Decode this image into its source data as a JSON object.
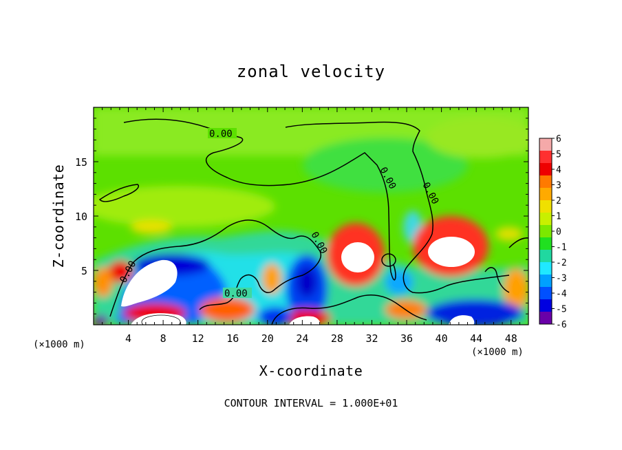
{
  "chart_data": {
    "type": "heatmap",
    "title": "zonal velocity",
    "xlabel": "X-coordinate",
    "ylabel": "Z-coordinate",
    "x_unit": "(×1000 m)",
    "y_unit": "(×1000 m)",
    "xlim": [
      0,
      50
    ],
    "ylim": [
      0,
      20
    ],
    "x_ticks": [
      4,
      8,
      12,
      16,
      20,
      24,
      28,
      32,
      36,
      40,
      44,
      48
    ],
    "y_ticks": [
      5,
      10,
      15
    ],
    "colorbar": {
      "ticks": [
        6,
        5,
        4,
        3,
        2,
        1,
        0,
        -1,
        -2,
        -3,
        -4,
        -5,
        -6
      ],
      "colors": [
        "#f5a9a9",
        "#ff3030",
        "#ee0000",
        "#ff7a00",
        "#ffaa00",
        "#f0e000",
        "#c8f000",
        "#7ce800",
        "#20e020",
        "#20d8a0",
        "#20e8ff",
        "#00a0ff",
        "#0050ff",
        "#0000e0",
        "#6a00a8"
      ]
    },
    "contour_labels": [
      "0.00",
      "0.00",
      "0.00",
      "0.00",
      "0.00",
      "0.00"
    ],
    "contour_interval_text": "CONTOUR INTERVAL = 1.000E+01",
    "features": [
      {
        "x": 30,
        "z": 6.0,
        "value": 6.5
      },
      {
        "x": 42.5,
        "z": 6.8,
        "value": 6.5
      },
      {
        "x": 7,
        "z": 4.5,
        "value": 6.5
      },
      {
        "x": 24.5,
        "z": 1.0,
        "value": 6.5
      },
      {
        "x": 10,
        "z": 5.5,
        "value": -4.5
      },
      {
        "x": 25,
        "z": 4.5,
        "value": -5.5
      },
      {
        "x": 34,
        "z": 4.0,
        "value": -3.0
      },
      {
        "x": 2,
        "z": 4.8,
        "value": 4.0
      },
      {
        "x": 15,
        "z": 2.0,
        "value": 3.5
      },
      {
        "x": 44.5,
        "z": 0.8,
        "value": -5.0
      }
    ]
  }
}
